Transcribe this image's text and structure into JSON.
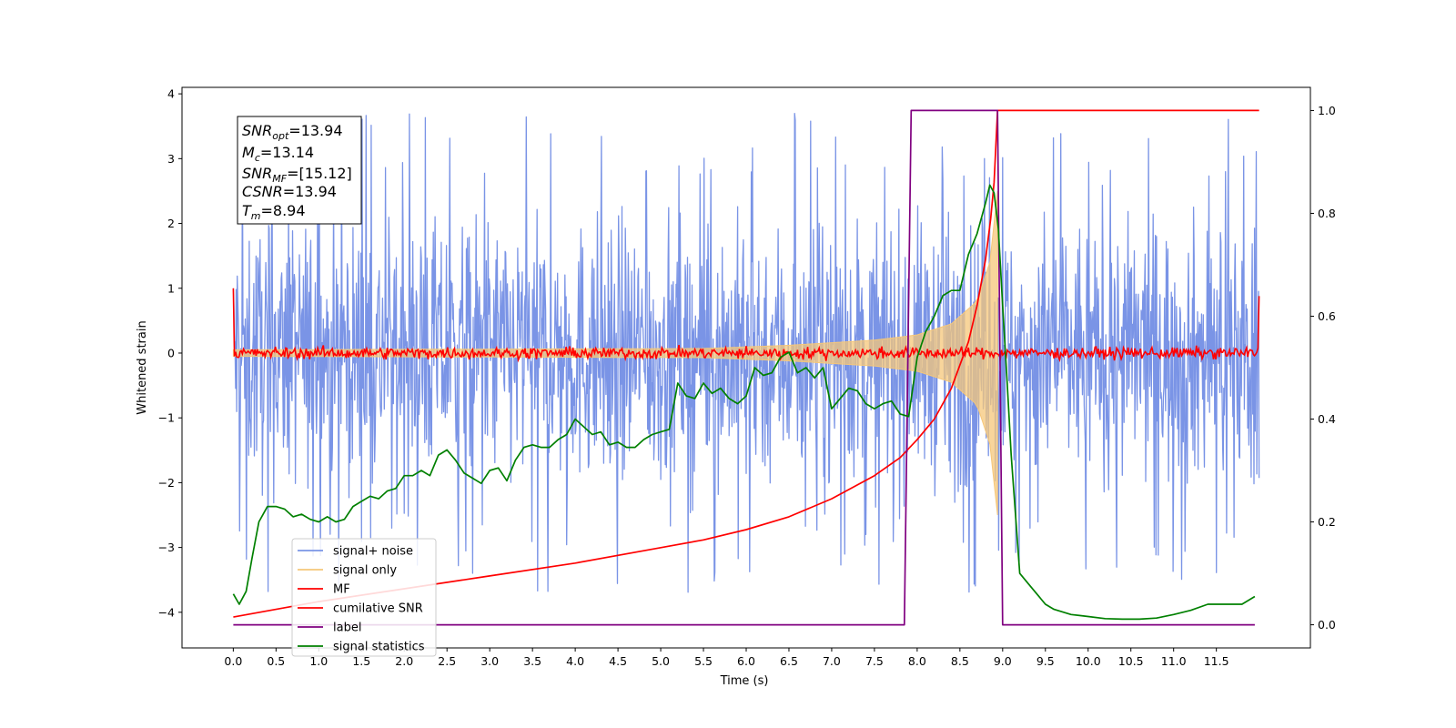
{
  "chart_data": {
    "type": "line",
    "xlabel": "Time (s)",
    "ylabel": "Whitened strain",
    "xlim": [
      -0.6,
      12.6
    ],
    "ylim_left": [
      -4.55,
      4.1
    ],
    "ylim_right": [
      -0.045,
      1.045
    ],
    "x_ticks": [
      "0.0",
      "0.5",
      "1.0",
      "1.5",
      "2.0",
      "2.5",
      "3.0",
      "3.5",
      "4.0",
      "4.5",
      "5.0",
      "5.5",
      "6.0",
      "6.5",
      "7.0",
      "7.5",
      "8.0",
      "8.5",
      "9.0",
      "9.5",
      "10.0",
      "10.5",
      "11.0",
      "11.5"
    ],
    "y_ticks_left": [
      "4",
      "3",
      "2",
      "1",
      "0",
      "−1",
      "−2",
      "−3",
      "−4"
    ],
    "y_ticks_right": [
      "1.0",
      "0.8",
      "0.6",
      "0.4",
      "0.2",
      "0.0"
    ],
    "grid": false,
    "legend_position": "lower-left",
    "info_box": {
      "snr_opt": {
        "main": "SNR",
        "sub": "opt",
        "value": "=13.94"
      },
      "mc": {
        "main": "M",
        "sub": "c",
        "value": "=13.14"
      },
      "snr_mf": {
        "main": "SNR",
        "sub": "MF",
        "value": "=[15.12]"
      },
      "csnr": {
        "main": "CSNR",
        "value": "=13.94"
      },
      "tm": {
        "main": "T",
        "sub": "m",
        "value": "=8.94"
      }
    },
    "series": [
      {
        "name": "signal+ noise",
        "axis": "left",
        "color": "#7a94e6",
        "noise_envelope": {
          "x_start": 0.0,
          "x_end": 12.0,
          "typical_range": [
            -2.0,
            2.0
          ],
          "extreme_range": [
            -4.1,
            3.7
          ]
        }
      },
      {
        "name": "signal only",
        "axis": "left",
        "color": "#f5c77a",
        "chirp_envelope": {
          "x": [
            0.0,
            5.5,
            6.5,
            7.5,
            8.0,
            8.4,
            8.7,
            8.85,
            8.94
          ],
          "amp": [
            0.05,
            0.07,
            0.12,
            0.2,
            0.28,
            0.45,
            0.8,
            1.4,
            2.5
          ]
        }
      },
      {
        "name": "MF",
        "axis": "left",
        "color": "#ff0000",
        "x_range": [
          0.0,
          12.0
        ],
        "base_level": 0.0,
        "noise_amp": 0.08,
        "edge_values": {
          "start": 1.0,
          "end": 0.88
        }
      },
      {
        "name": "cumilative SNR",
        "axis": "right",
        "color": "#ff0000",
        "x": [
          0.0,
          1.0,
          2.0,
          3.0,
          4.0,
          5.0,
          5.5,
          6.0,
          6.5,
          7.0,
          7.5,
          7.8,
          8.0,
          8.2,
          8.4,
          8.6,
          8.7,
          8.8,
          8.86,
          8.9,
          8.94,
          12.0
        ],
        "y": [
          0.015,
          0.045,
          0.07,
          0.095,
          0.12,
          0.15,
          0.165,
          0.185,
          0.21,
          0.245,
          0.29,
          0.325,
          0.36,
          0.4,
          0.46,
          0.55,
          0.62,
          0.71,
          0.79,
          0.86,
          1.0,
          1.0
        ]
      },
      {
        "name": "label",
        "axis": "right",
        "color": "#800080",
        "x": [
          0.0,
          7.85,
          7.93,
          8.94,
          8.94,
          9.0,
          11.95
        ],
        "y": [
          0.0,
          0.0,
          1.0,
          1.0,
          1.0,
          0.0,
          0.0
        ]
      },
      {
        "name": "signal statistics",
        "axis": "right",
        "color": "#008000",
        "x": [
          0.0,
          0.07,
          0.15,
          0.22,
          0.3,
          0.4,
          0.5,
          0.6,
          0.7,
          0.8,
          0.9,
          1.0,
          1.1,
          1.2,
          1.3,
          1.4,
          1.5,
          1.6,
          1.7,
          1.8,
          1.9,
          2.0,
          2.1,
          2.2,
          2.3,
          2.4,
          2.5,
          2.6,
          2.7,
          2.8,
          2.9,
          3.0,
          3.1,
          3.2,
          3.3,
          3.4,
          3.5,
          3.6,
          3.7,
          3.8,
          3.9,
          4.0,
          4.1,
          4.2,
          4.3,
          4.4,
          4.5,
          4.6,
          4.7,
          4.8,
          4.9,
          5.0,
          5.1,
          5.2,
          5.3,
          5.4,
          5.5,
          5.6,
          5.7,
          5.8,
          5.9,
          6.0,
          6.1,
          6.2,
          6.3,
          6.4,
          6.5,
          6.6,
          6.7,
          6.8,
          6.9,
          7.0,
          7.1,
          7.2,
          7.3,
          7.4,
          7.5,
          7.6,
          7.7,
          7.8,
          7.9,
          8.0,
          8.1,
          8.2,
          8.3,
          8.4,
          8.5,
          8.6,
          8.7,
          8.8,
          8.85,
          8.9,
          8.95,
          9.0,
          9.05,
          9.1,
          9.2,
          9.3,
          9.4,
          9.5,
          9.6,
          9.7,
          9.8,
          9.9,
          10.0,
          10.2,
          10.4,
          10.6,
          10.8,
          11.0,
          11.2,
          11.4,
          11.6,
          11.8,
          11.95
        ],
        "y": [
          0.06,
          0.04,
          0.065,
          0.13,
          0.2,
          0.23,
          0.23,
          0.225,
          0.21,
          0.215,
          0.205,
          0.2,
          0.21,
          0.2,
          0.205,
          0.23,
          0.24,
          0.25,
          0.245,
          0.26,
          0.265,
          0.29,
          0.29,
          0.3,
          0.29,
          0.33,
          0.34,
          0.32,
          0.295,
          0.285,
          0.275,
          0.3,
          0.305,
          0.28,
          0.32,
          0.345,
          0.35,
          0.345,
          0.345,
          0.36,
          0.37,
          0.4,
          0.385,
          0.37,
          0.375,
          0.35,
          0.355,
          0.345,
          0.345,
          0.36,
          0.37,
          0.375,
          0.38,
          0.47,
          0.445,
          0.44,
          0.47,
          0.45,
          0.46,
          0.44,
          0.43,
          0.445,
          0.5,
          0.485,
          0.49,
          0.52,
          0.53,
          0.49,
          0.5,
          0.48,
          0.5,
          0.42,
          0.44,
          0.46,
          0.455,
          0.43,
          0.42,
          0.43,
          0.435,
          0.41,
          0.405,
          0.52,
          0.57,
          0.6,
          0.64,
          0.65,
          0.65,
          0.72,
          0.76,
          0.82,
          0.855,
          0.84,
          0.77,
          0.62,
          0.48,
          0.33,
          0.1,
          0.08,
          0.06,
          0.04,
          0.03,
          0.025,
          0.02,
          0.018,
          0.016,
          0.012,
          0.011,
          0.011,
          0.013,
          0.02,
          0.028,
          0.04,
          0.04,
          0.04,
          0.055
        ]
      }
    ]
  }
}
